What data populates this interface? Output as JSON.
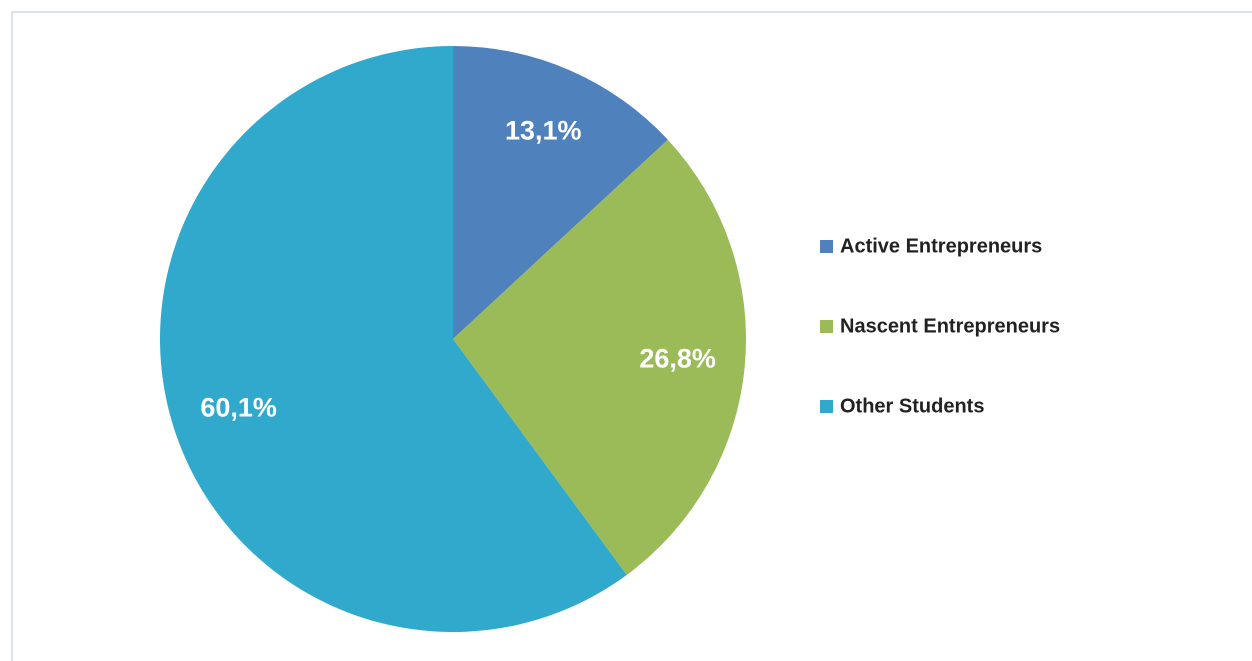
{
  "chart_data": {
    "type": "pie",
    "categories": [
      "Active Entrepreneurs",
      "Nascent Entrepreneurs",
      "Other Students"
    ],
    "values": [
      13.1,
      26.8,
      60.1
    ],
    "value_labels": [
      "13,1%",
      "26,8%",
      "60,1%"
    ],
    "colors": [
      "#4f81bd",
      "#9bbb59",
      "#31a9cc"
    ],
    "legend": "right"
  }
}
